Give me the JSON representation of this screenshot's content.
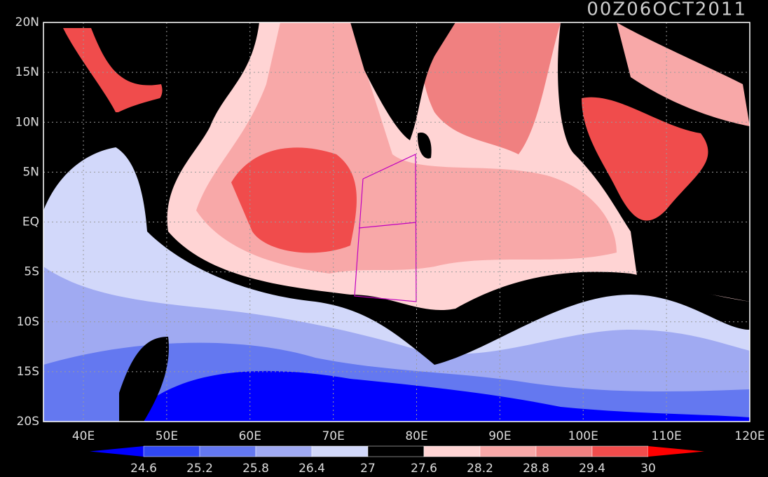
{
  "title": "00Z06OCT2011",
  "lat_labels": [
    "20N",
    "15N",
    "10N",
    "5N",
    "EQ",
    "5S",
    "10S",
    "15S",
    "20S"
  ],
  "lon_labels": [
    "40E",
    "50E",
    "60E",
    "70E",
    "80E",
    "90E",
    "100E",
    "110E",
    "120E"
  ],
  "colorbar": {
    "labels": [
      "24.6",
      "25.2",
      "25.8",
      "26.4",
      "27",
      "27.6",
      "28.2",
      "28.8",
      "29.4",
      "30"
    ],
    "colors": [
      "#0000ff",
      "#3048f4",
      "#6478f0",
      "#a0aaf2",
      "#d2d8fa",
      "#000000",
      "#ffd4d4",
      "#f8a8a8",
      "#f08080",
      "#f04c4c",
      "#ff0000"
    ]
  }
}
